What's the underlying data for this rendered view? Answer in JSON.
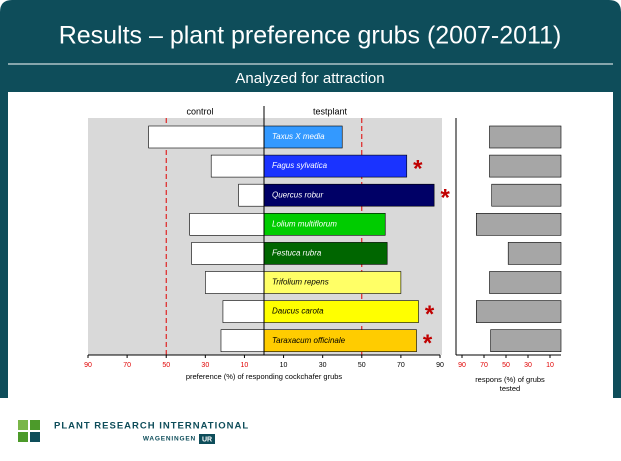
{
  "title": "Results – plant preference grubs (2007-2011)",
  "subtitle": "Analyzed for attraction",
  "chart_data": [
    {
      "type": "diverging-bar",
      "categories": [
        "Taxus X media",
        "Fagus sylvatica",
        "Quercus robur",
        "Lolium multiflorum",
        "Festuca rubra",
        "Trifolium repens",
        "Daucus carota",
        "Taraxacum officinale"
      ],
      "series": [
        {
          "name": "control",
          "color": "#ffffff",
          "direction": "left",
          "values": [
            59,
            27,
            13,
            38,
            37,
            30,
            21,
            22
          ]
        },
        {
          "name": "testplant",
          "direction": "right",
          "colors": [
            "#3399ff",
            "#1a33ff",
            "#000066",
            "#00cc00",
            "#006600",
            "#ffff66",
            "#ffff00",
            "#ffcc00"
          ],
          "values": [
            40,
            73,
            87,
            62,
            63,
            70,
            79,
            78
          ]
        }
      ],
      "significant": [
        false,
        true,
        true,
        false,
        false,
        false,
        true,
        true
      ],
      "marker": "*",
      "marker_color": "#c00000",
      "xlim_left": [
        0,
        90
      ],
      "xticks_left": [
        90,
        70,
        50,
        30,
        10
      ],
      "xlim_right": [
        0,
        90
      ],
      "xticks_right": [
        10,
        30,
        50,
        70,
        90
      ],
      "reference_value": 50,
      "reference_color": "#e00000",
      "background": "#d9d9d9",
      "xlabel": "preference (%) of responding cockchafer grubs"
    },
    {
      "type": "bar",
      "values": [
        65,
        65,
        63,
        77,
        48,
        65,
        77,
        64
      ],
      "color": "#a6a6a6",
      "xlim": [
        0,
        90
      ],
      "xticks": [
        90,
        70,
        50,
        30,
        10
      ],
      "reversed": true,
      "xlabel": [
        "respons (%) of grubs",
        "tested"
      ]
    }
  ],
  "footer": {
    "org": "PLANT RESEARCH INTERNATIONAL",
    "sub": "WAGENINGEN",
    "badge": "UR"
  }
}
